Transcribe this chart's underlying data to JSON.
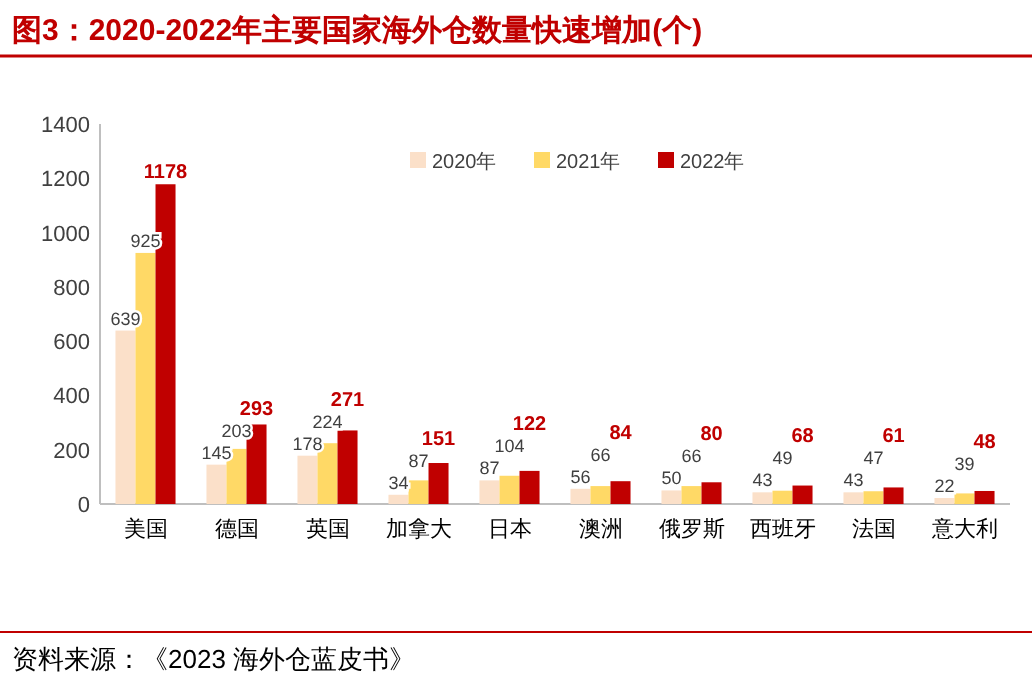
{
  "chart_data": {
    "type": "bar",
    "title": "图3：2020-2022年主要国家海外仓数量快速增加(个)",
    "categories": [
      "美国",
      "德国",
      "英国",
      "加拿大",
      "日本",
      "澳洲",
      "俄罗斯",
      "西班牙",
      "法国",
      "意大利"
    ],
    "series": [
      {
        "name": "2020年",
        "color": "#fbe0c9",
        "values": [
          639,
          145,
          178,
          34,
          87,
          56,
          50,
          43,
          43,
          22
        ]
      },
      {
        "name": "2021年",
        "color": "#ffd966",
        "values": [
          925,
          203,
          224,
          87,
          104,
          66,
          66,
          49,
          47,
          39
        ]
      },
      {
        "name": "2022年",
        "color": "#c00000",
        "values": [
          1178,
          293,
          271,
          151,
          122,
          84,
          80,
          68,
          61,
          48
        ]
      }
    ],
    "ylim": [
      0,
      1400
    ],
    "yticks": [
      0,
      200,
      400,
      600,
      800,
      1000,
      1200,
      1400
    ],
    "data_labels": true,
    "grid": false,
    "legend": "top right",
    "annotations": [
      "资料来源：《2023 海外仓蓝皮书》"
    ]
  }
}
